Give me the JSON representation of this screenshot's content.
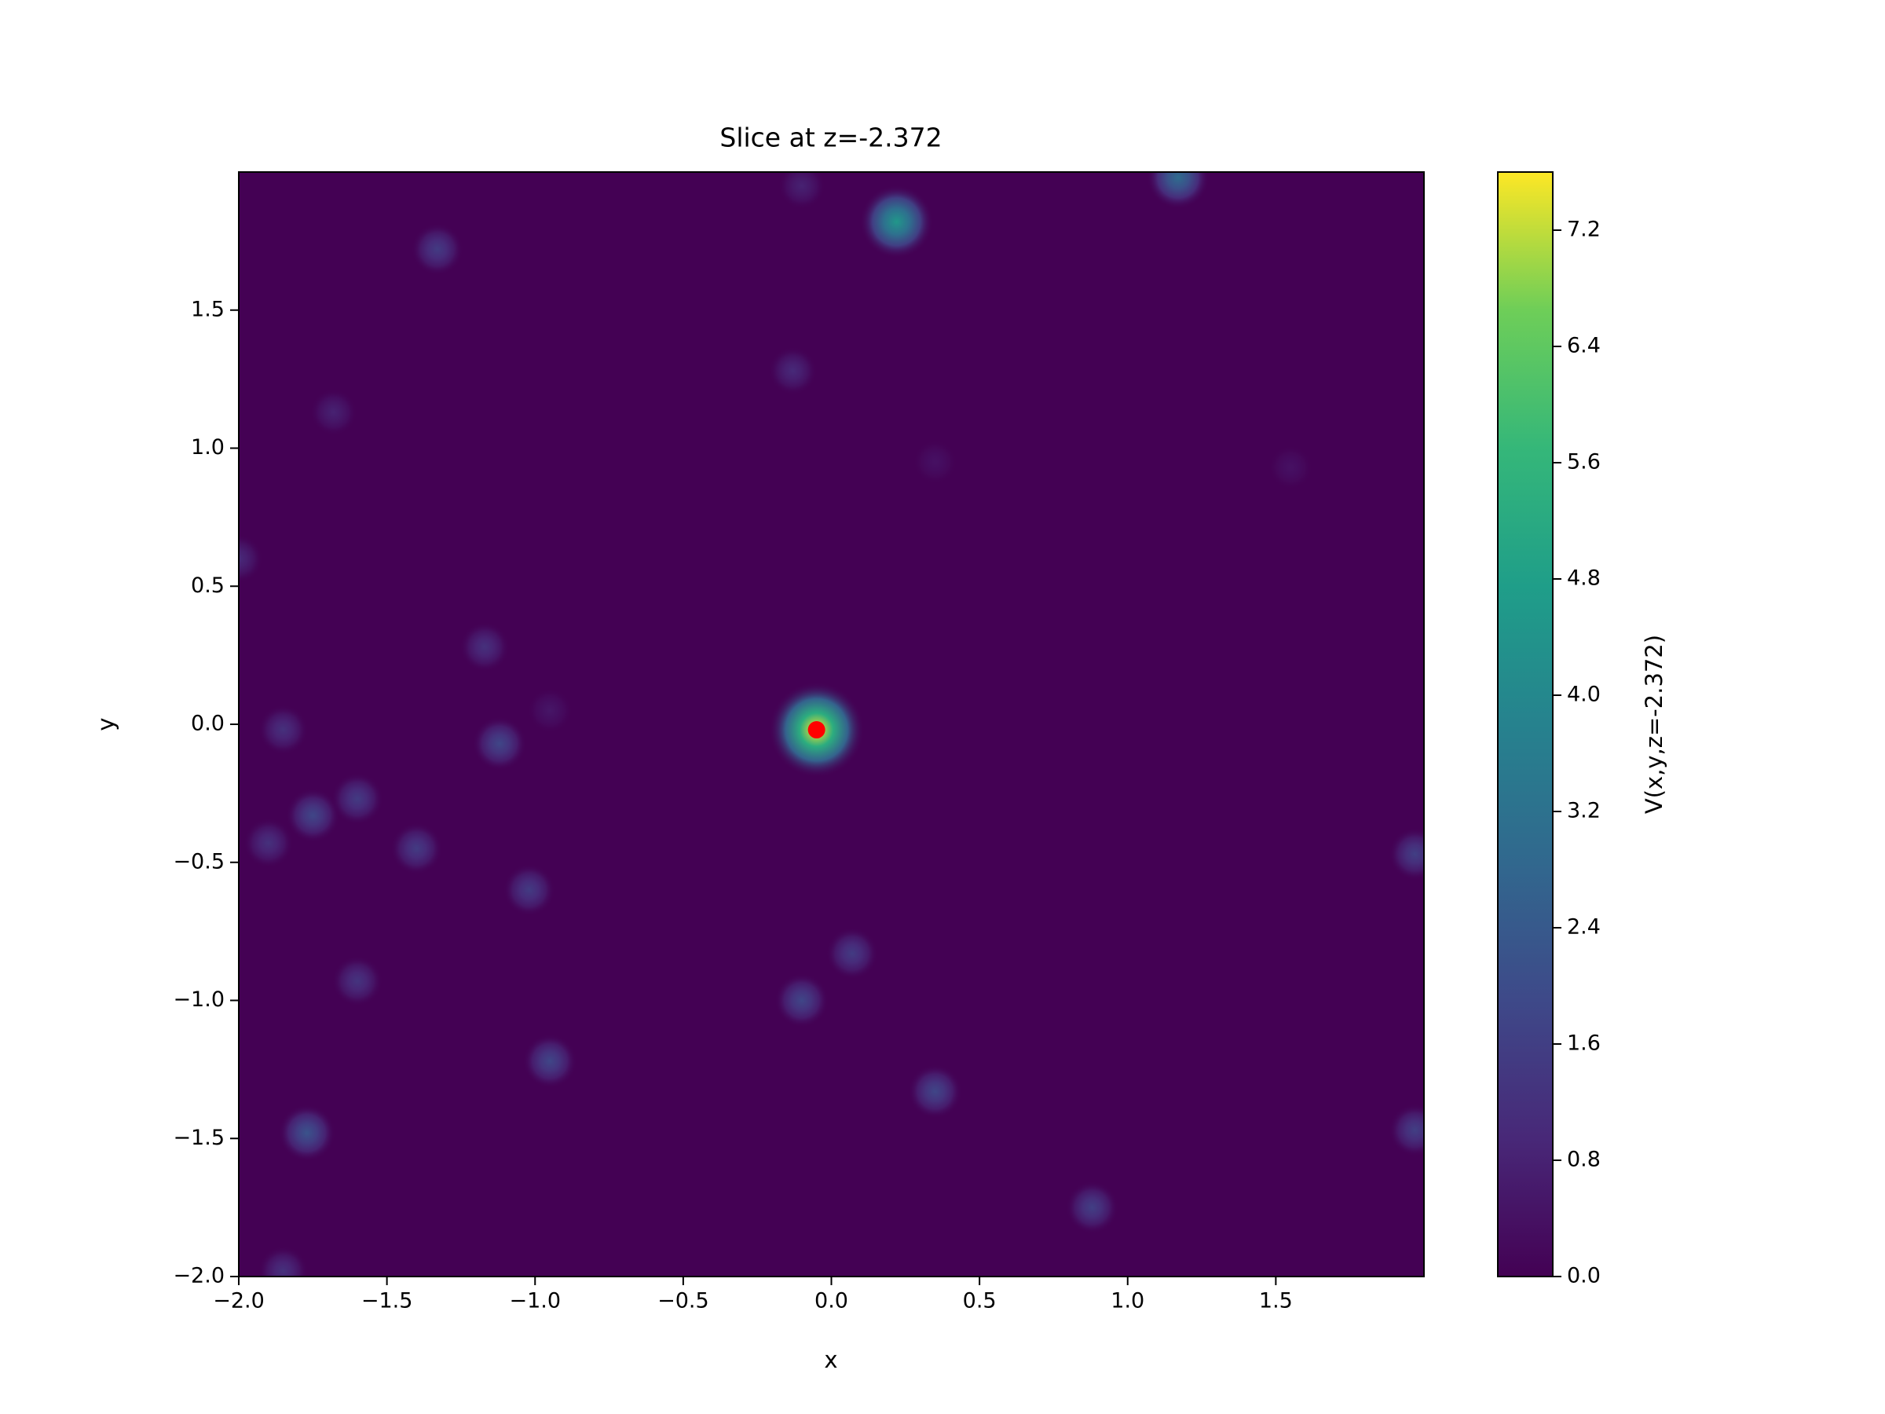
{
  "chart_data": {
    "type": "contour",
    "title": "Slice at z=-2.372",
    "xlabel": "x",
    "ylabel": "y",
    "colorbar_label": "V(x,y,z=-2.372)",
    "xlim": [
      -2,
      2
    ],
    "ylim": [
      -2,
      2
    ],
    "xticks": [
      {
        "value": -2,
        "label": "−2.0"
      },
      {
        "value": -1.5,
        "label": "−1.5"
      },
      {
        "value": -1,
        "label": "−1.0"
      },
      {
        "value": -0.5,
        "label": "−0.5"
      },
      {
        "value": 0,
        "label": "0.0"
      },
      0.5,
      {
        "value": 1,
        "label": "1.0"
      },
      1.5
    ],
    "yticks": [
      {
        "value": -2,
        "label": "−2.0"
      },
      {
        "value": -1.5,
        "label": "−1.5"
      },
      {
        "value": -1,
        "label": "−1.0"
      },
      {
        "value": -0.5,
        "label": "−0.5"
      },
      {
        "value": 0,
        "label": "0.0"
      },
      0.5,
      {
        "value": 1,
        "label": "1.0"
      },
      1.5
    ],
    "clim": [
      0,
      7.6
    ],
    "cticks": [
      {
        "value": 0,
        "label": "0.0"
      },
      0.8,
      1.6,
      2.4,
      3.2,
      {
        "value": 4,
        "label": "4.0"
      },
      4.8,
      5.6,
      6.4,
      7.2
    ],
    "x": [
      -0.05,
      0.22,
      1.17,
      -1.33,
      -0.1,
      -0.13,
      -1.68,
      0.35,
      1.55,
      -2.0,
      -1.17,
      -1.12,
      -0.95,
      -1.85,
      -1.75,
      -1.6,
      -1.9,
      -1.4,
      -1.02,
      0.07,
      -0.1,
      -1.6,
      -0.95,
      0.35,
      -1.77,
      0.88,
      1.97,
      1.97,
      -1.85
    ],
    "y": [
      -0.02,
      1.82,
      1.98,
      1.72,
      1.95,
      1.28,
      1.13,
      0.95,
      0.93,
      0.6,
      0.28,
      -0.07,
      0.05,
      -0.02,
      -0.33,
      -0.27,
      -0.43,
      -0.45,
      -0.6,
      -0.83,
      -1.0,
      -0.93,
      -1.22,
      -1.33,
      -1.48,
      -1.75,
      -0.47,
      -1.47,
      -1.98
    ],
    "values": [
      7.6,
      4.5,
      3.0,
      1.5,
      0.8,
      1.0,
      0.8,
      0.4,
      0.4,
      1.0,
      1.2,
      1.8,
      0.5,
      1.2,
      1.8,
      1.5,
      1.2,
      1.5,
      1.5,
      1.5,
      1.8,
      1.3,
      1.8,
      1.8,
      2.2,
      1.6,
      1.6,
      1.6,
      1.2
    ],
    "marker": {
      "x": -0.05,
      "y": -0.02,
      "color": "red"
    }
  }
}
